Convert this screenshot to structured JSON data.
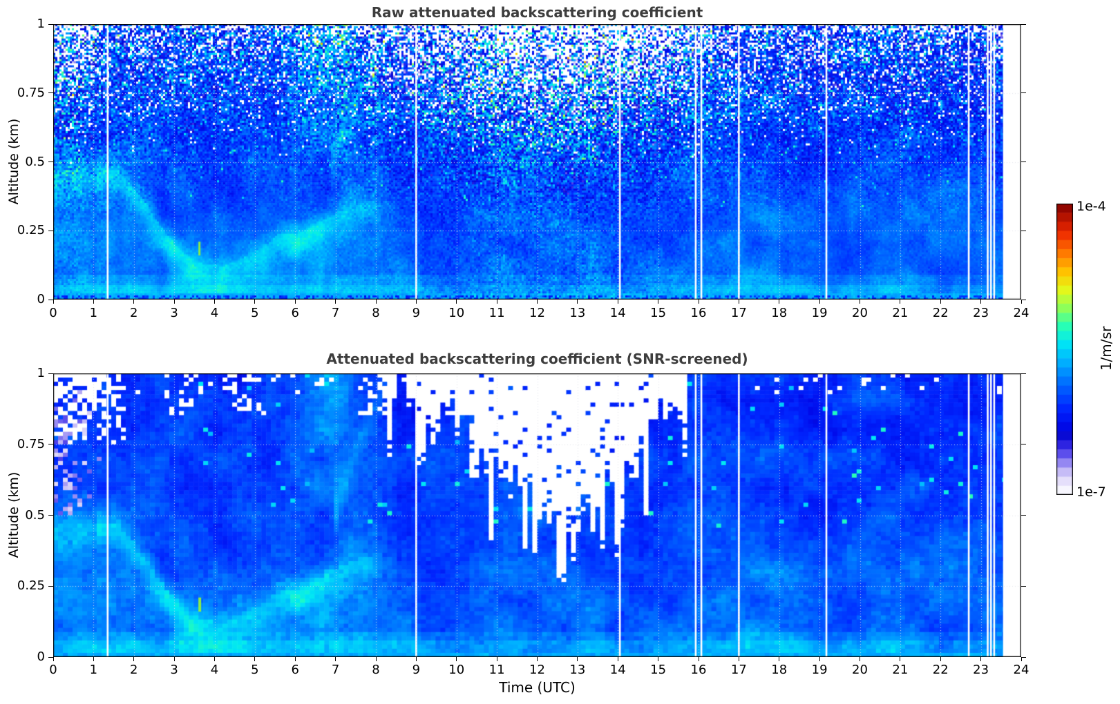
{
  "figure": {
    "background": "#ffffff",
    "title_color": "#3d3d3d",
    "description": "Ceilometer/lidar quicklook: two time-height heatmaps of attenuated backscattering coefficient over 24 h, with shared jet-style colorbar (log scale 1e-7 to 1e-4 1/m/sr)."
  },
  "colorbar": {
    "top_label": "1e-4",
    "bottom_label": "1e-7",
    "units": "1/m/sr",
    "scale": "log10",
    "range_log10": [
      -7,
      -4
    ]
  },
  "chart_data": [
    {
      "type": "heatmap",
      "panel": "top",
      "title": "Raw attenuated backscattering coefficient",
      "xlabel": "",
      "ylabel": "Altitude (km)",
      "x_range": [
        0,
        24
      ],
      "y_range": [
        0,
        1
      ],
      "x_tick_labels": [
        "0",
        "1",
        "2",
        "3",
        "4",
        "5",
        "6",
        "7",
        "8",
        "9",
        "10",
        "11",
        "12",
        "13",
        "14",
        "15",
        "16",
        "17",
        "18",
        "19",
        "20",
        "21",
        "22",
        "23",
        "24"
      ],
      "y_tick_labels": [
        "0",
        "0.25",
        "0.5",
        "0.75",
        "1"
      ],
      "grid": "dotted-white-both-axes",
      "style": "raw-noisy",
      "noise": {
        "speckle_sigma_base": 0.012,
        "speckle_sigma_alt_gain": 0.105,
        "white_speckle_max_p": 0.55,
        "noisy_column_band_center_hour": 12.4,
        "noisy_column_band_halfwidth_h": 2.3,
        "early_noisy_band_center_hour": 0.35
      }
    },
    {
      "type": "heatmap",
      "panel": "bottom",
      "title": "Attenuated backscattering coefficient (SNR-screened)",
      "xlabel": "Time (UTC)",
      "ylabel": "Altitude (km)",
      "x_range": [
        0,
        24
      ],
      "y_range": [
        0,
        1
      ],
      "x_tick_labels": [
        "0",
        "1",
        "2",
        "3",
        "4",
        "5",
        "6",
        "7",
        "8",
        "9",
        "10",
        "11",
        "12",
        "13",
        "14",
        "15",
        "16",
        "17",
        "18",
        "19",
        "20",
        "21",
        "22",
        "23",
        "24"
      ],
      "y_tick_labels": [
        "0",
        "0.25",
        "0.5",
        "0.75",
        "1"
      ],
      "grid": "dotted-white-both-axes",
      "style": "snr-screened",
      "screen_mask": {
        "streak_region_hours": [
          8.05,
          15.75
        ],
        "deepest_mask_hour": 12.5,
        "deepest_mask_altitude_km": 0.5,
        "top_left_white_patch": {
          "hours": [
            0,
            1.8
          ],
          "altitude_above_km": 0.75
        },
        "lavender_low_value_zone": {
          "hours": [
            0,
            1.25
          ],
          "altitude_km": [
            0.5,
            0.95
          ]
        },
        "scattered_top_white_hours": [
          3.2,
          4.75,
          7.9
        ]
      }
    }
  ],
  "field_model": {
    "comment": "Shared physical field (t = normalized log10 backscatter, 0 => 1e-7, 1 => 1e-4).",
    "background_t_at_surface": 0.375,
    "background_t_slope_per_km": -0.07,
    "boundary_layer_curve_hour_alt": [
      [
        0,
        0.44
      ],
      [
        0.8,
        0.46
      ],
      [
        1.6,
        0.45
      ],
      [
        2.2,
        0.35
      ],
      [
        2.7,
        0.24
      ],
      [
        3.2,
        0.15
      ],
      [
        3.7,
        0.11
      ],
      [
        4.2,
        0.1
      ],
      [
        4.7,
        0.13
      ],
      [
        5.2,
        0.17
      ],
      [
        5.6,
        0.22
      ],
      [
        6.1,
        0.22
      ],
      [
        6.6,
        0.26
      ],
      [
        7.1,
        0.3
      ],
      [
        7.6,
        0.33
      ],
      [
        8.3,
        0.33
      ]
    ],
    "surface_band": {
      "alt_km": 0.02,
      "t": 0.45
    },
    "afternoon_plume": {
      "center_hour": 17.8,
      "halfwidth_h": 0.8,
      "max_alt_km": 0.58
    },
    "morning_cyan_plume": {
      "center_hour": 6.9,
      "halfwidth_h": 0.5,
      "center_alt_km": 1.0
    },
    "green_speck": {
      "hour": 3.6,
      "alt_km": [
        0.16,
        0.21
      ]
    },
    "data_gap_hours": [
      1.35,
      9.0,
      14.05,
      15.93,
      16.07,
      17.0,
      19.17,
      22.7,
      23.17,
      23.25,
      23.33
    ],
    "data_end_hour": 23.55,
    "colormap_stops": [
      [
        0.0,
        255,
        255,
        255
      ],
      [
        0.035,
        238,
        234,
        252
      ],
      [
        0.07,
        210,
        202,
        248
      ],
      [
        0.1,
        165,
        152,
        244
      ],
      [
        0.13,
        110,
        96,
        238
      ],
      [
        0.16,
        60,
        45,
        232
      ],
      [
        0.2,
        10,
        10,
        210
      ],
      [
        0.24,
        0,
        10,
        235
      ],
      [
        0.3,
        0,
        40,
        255
      ],
      [
        0.38,
        0,
        105,
        255
      ],
      [
        0.46,
        0,
        180,
        255
      ],
      [
        0.52,
        0,
        230,
        245
      ],
      [
        0.58,
        40,
        255,
        180
      ],
      [
        0.64,
        140,
        255,
        90
      ],
      [
        0.7,
        225,
        250,
        30
      ],
      [
        0.76,
        255,
        200,
        0
      ],
      [
        0.83,
        255,
        120,
        0
      ],
      [
        0.9,
        238,
        40,
        0
      ],
      [
        1.0,
        130,
        0,
        0
      ]
    ],
    "gridline_color": "rgba(225,228,236,0.95)"
  }
}
